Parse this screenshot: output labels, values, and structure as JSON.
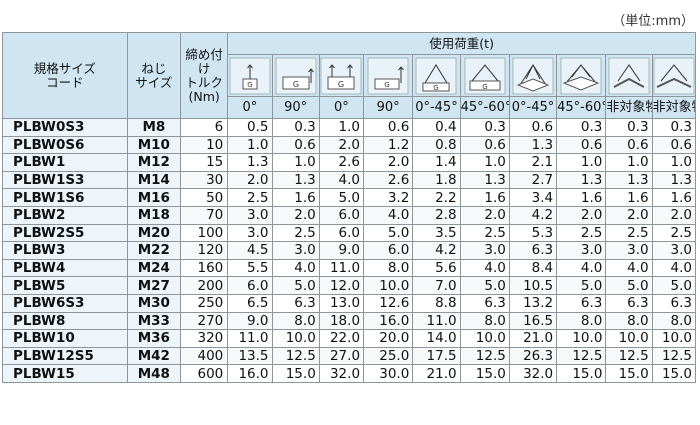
{
  "unit_note": "（単位:mm）",
  "header": {
    "code_label": "規格サイズ\nコード",
    "screw_label": "ねじ\nサイズ",
    "torque_label": "締め付け\nトルク\n(Nm)",
    "load_label": "使用荷重(t)",
    "angles": [
      "0°",
      "90°",
      "0°",
      "90°",
      "0°-45°",
      "45°-60°",
      "0°-45°",
      "45°-60°",
      "非対象物",
      "非対象物"
    ],
    "icons": [
      "single-vertical-lift-icon",
      "single-side-lift-icon",
      "two-point-vertical-lift-icon",
      "two-point-side-lift-icon",
      "two-leg-sling-icon",
      "two-leg-sling-wide-icon",
      "four-leg-sling-icon",
      "four-leg-sling-wide-icon",
      "asymmetric-load-icon",
      "asymmetric-load-wide-icon"
    ]
  },
  "rows": [
    {
      "code": "PLBW0S3",
      "screw": "M8",
      "torque": "6",
      "loads": [
        "0.5",
        "0.3",
        "1.0",
        "0.6",
        "0.4",
        "0.3",
        "0.6",
        "0.3",
        "0.3",
        "0.3"
      ]
    },
    {
      "code": "PLBW0S6",
      "screw": "M10",
      "torque": "10",
      "loads": [
        "1.0",
        "0.6",
        "2.0",
        "1.2",
        "0.8",
        "0.6",
        "1.3",
        "0.6",
        "0.6",
        "0.6"
      ]
    },
    {
      "code": "PLBW1",
      "screw": "M12",
      "torque": "15",
      "loads": [
        "1.3",
        "1.0",
        "2.6",
        "2.0",
        "1.4",
        "1.0",
        "2.1",
        "1.0",
        "1.0",
        "1.0"
      ]
    },
    {
      "code": "PLBW1S3",
      "screw": "M14",
      "torque": "30",
      "loads": [
        "2.0",
        "1.3",
        "4.0",
        "2.6",
        "1.8",
        "1.3",
        "2.7",
        "1.3",
        "1.3",
        "1.3"
      ]
    },
    {
      "code": "PLBW1S6",
      "screw": "M16",
      "torque": "50",
      "loads": [
        "2.5",
        "1.6",
        "5.0",
        "3.2",
        "2.2",
        "1.6",
        "3.4",
        "1.6",
        "1.6",
        "1.6"
      ]
    },
    {
      "code": "PLBW2",
      "screw": "M18",
      "torque": "70",
      "loads": [
        "3.0",
        "2.0",
        "6.0",
        "4.0",
        "2.8",
        "2.0",
        "4.2",
        "2.0",
        "2.0",
        "2.0"
      ]
    },
    {
      "code": "PLBW2S5",
      "screw": "M20",
      "torque": "100",
      "loads": [
        "3.0",
        "2.5",
        "6.0",
        "5.0",
        "3.5",
        "2.5",
        "5.3",
        "2.5",
        "2.5",
        "2.5"
      ]
    },
    {
      "code": "PLBW3",
      "screw": "M22",
      "torque": "120",
      "loads": [
        "4.5",
        "3.0",
        "9.0",
        "6.0",
        "4.2",
        "3.0",
        "6.3",
        "3.0",
        "3.0",
        "3.0"
      ]
    },
    {
      "code": "PLBW4",
      "screw": "M24",
      "torque": "160",
      "loads": [
        "5.5",
        "4.0",
        "11.0",
        "8.0",
        "5.6",
        "4.0",
        "8.4",
        "4.0",
        "4.0",
        "4.0"
      ]
    },
    {
      "code": "PLBW5",
      "screw": "M27",
      "torque": "200",
      "loads": [
        "6.0",
        "5.0",
        "12.0",
        "10.0",
        "7.0",
        "5.0",
        "10.5",
        "5.0",
        "5.0",
        "5.0"
      ]
    },
    {
      "code": "PLBW6S3",
      "screw": "M30",
      "torque": "250",
      "loads": [
        "6.5",
        "6.3",
        "13.0",
        "12.6",
        "8.8",
        "6.3",
        "13.2",
        "6.3",
        "6.3",
        "6.3"
      ]
    },
    {
      "code": "PLBW8",
      "screw": "M33",
      "torque": "270",
      "loads": [
        "9.0",
        "8.0",
        "18.0",
        "16.0",
        "11.0",
        "8.0",
        "16.5",
        "8.0",
        "8.0",
        "8.0"
      ]
    },
    {
      "code": "PLBW10",
      "screw": "M36",
      "torque": "320",
      "loads": [
        "11.0",
        "10.0",
        "22.0",
        "20.0",
        "14.0",
        "10.0",
        "21.0",
        "10.0",
        "10.0",
        "10.0"
      ]
    },
    {
      "code": "PLBW12S5",
      "screw": "M42",
      "torque": "400",
      "loads": [
        "13.5",
        "12.5",
        "27.0",
        "25.0",
        "17.5",
        "12.5",
        "26.3",
        "12.5",
        "12.5",
        "12.5"
      ]
    },
    {
      "code": "PLBW15",
      "screw": "M48",
      "torque": "600",
      "loads": [
        "16.0",
        "15.0",
        "32.0",
        "30.0",
        "21.0",
        "15.0",
        "32.0",
        "15.0",
        "15.0",
        "15.0"
      ]
    }
  ]
}
